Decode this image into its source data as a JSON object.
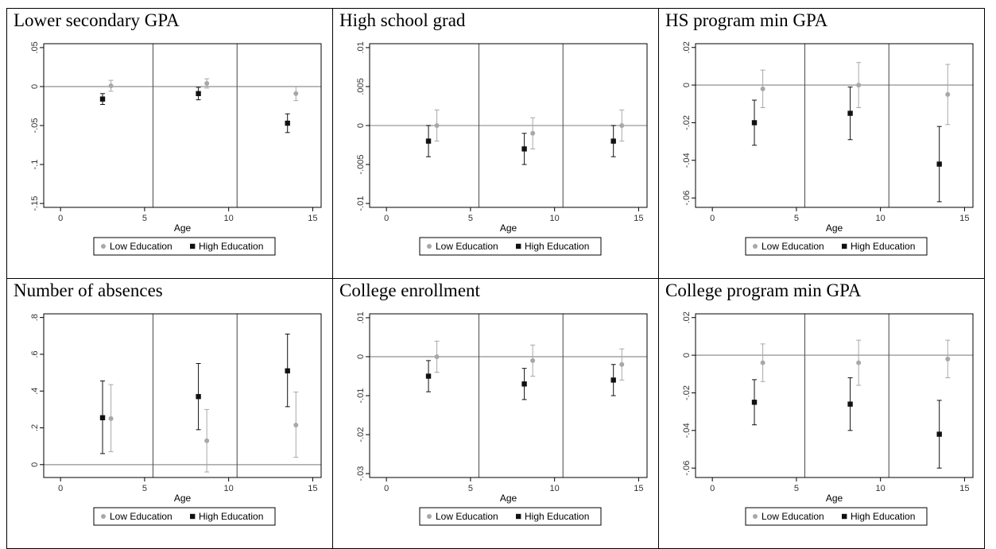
{
  "colors": {
    "low": "#a8a8a8",
    "high": "#111111",
    "hline": "#aaaaaa",
    "vline": "#555555",
    "frame": "#000000"
  },
  "chart_data": [
    {
      "type": "scatter",
      "title": "Lower secondary GPA",
      "xlabel": "Age",
      "xlim": [
        -1,
        15.5
      ],
      "xticks": [
        0,
        5,
        10,
        15
      ],
      "xtick_labels": [
        "0",
        "5",
        "10",
        "15"
      ],
      "ylim": [
        -0.155,
        0.055
      ],
      "yticks": [
        0.05,
        0,
        -0.05,
        -0.1,
        -0.15
      ],
      "ytick_labels": [
        ".05",
        "0",
        "-.05",
        "-.1",
        "-.15"
      ],
      "hline": 0,
      "vlines": [
        5.5,
        10.5
      ],
      "legend": {
        "placement": "bottom",
        "labels": [
          "Low Education",
          "High Education"
        ]
      },
      "series": [
        {
          "name": "Low Education",
          "x": [
            3,
            8.7,
            14
          ],
          "y": [
            0.001,
            0.004,
            -0.009
          ],
          "lo": [
            -0.006,
            -0.002,
            -0.018
          ],
          "hi": [
            0.008,
            0.01,
            0
          ]
        },
        {
          "name": "High Education",
          "x": [
            2.5,
            8.2,
            13.5
          ],
          "y": [
            -0.016,
            -0.009,
            -0.047
          ],
          "lo": [
            -0.023,
            -0.017,
            -0.059
          ],
          "hi": [
            -0.009,
            -0.001,
            -0.035
          ]
        }
      ]
    },
    {
      "type": "scatter",
      "title": "High school grad",
      "xlabel": "Age",
      "xlim": [
        -1,
        15.5
      ],
      "xticks": [
        0,
        5,
        10,
        15
      ],
      "xtick_labels": [
        "0",
        "5",
        "10",
        "15"
      ],
      "ylim": [
        -0.0105,
        0.0105
      ],
      "yticks": [
        0.01,
        0.005,
        0,
        -0.005,
        -0.01
      ],
      "ytick_labels": [
        ".01",
        ".005",
        "0",
        "-.005",
        "-.01"
      ],
      "hline": 0,
      "vlines": [
        5.5,
        10.5
      ],
      "legend": {
        "placement": "bottom",
        "labels": [
          "Low Education",
          "High Education"
        ]
      },
      "series": [
        {
          "name": "Low Education",
          "x": [
            3,
            8.7,
            14
          ],
          "y": [
            0,
            -0.001,
            0
          ],
          "lo": [
            -0.002,
            -0.003,
            -0.002
          ],
          "hi": [
            0.002,
            0.001,
            0.002
          ]
        },
        {
          "name": "High Education",
          "x": [
            2.5,
            8.2,
            13.5
          ],
          "y": [
            -0.002,
            -0.003,
            -0.002
          ],
          "lo": [
            -0.004,
            -0.005,
            -0.004
          ],
          "hi": [
            0,
            -0.001,
            0
          ]
        }
      ]
    },
    {
      "type": "scatter",
      "title": "HS program min GPA",
      "xlabel": "Age",
      "xlim": [
        -1,
        15.5
      ],
      "xticks": [
        0,
        5,
        10,
        15
      ],
      "xtick_labels": [
        "0",
        "5",
        "10",
        "15"
      ],
      "ylim": [
        -0.065,
        0.022
      ],
      "yticks": [
        0.02,
        0,
        -0.02,
        -0.04,
        -0.06
      ],
      "ytick_labels": [
        ".02",
        "0",
        "-.02",
        "-.04",
        "-.06"
      ],
      "hline": 0,
      "vlines": [
        5.5,
        10.5
      ],
      "legend": {
        "placement": "bottom",
        "labels": [
          "Low Education",
          "High Education"
        ]
      },
      "series": [
        {
          "name": "Low Education",
          "x": [
            3,
            8.7,
            14
          ],
          "y": [
            -0.002,
            0,
            -0.005
          ],
          "lo": [
            -0.012,
            -0.012,
            -0.021
          ],
          "hi": [
            0.008,
            0.012,
            0.011
          ]
        },
        {
          "name": "High Education",
          "x": [
            2.5,
            8.2,
            13.5
          ],
          "y": [
            -0.02,
            -0.015,
            -0.042
          ],
          "lo": [
            -0.032,
            -0.029,
            -0.062
          ],
          "hi": [
            -0.008,
            -0.001,
            -0.022
          ]
        }
      ]
    },
    {
      "type": "scatter",
      "title": "Number of absences",
      "xlabel": "Age",
      "xlim": [
        -1,
        15.5
      ],
      "xticks": [
        0,
        5,
        10,
        15
      ],
      "xtick_labels": [
        "0",
        "5",
        "10",
        "15"
      ],
      "ylim": [
        -0.07,
        0.82
      ],
      "yticks": [
        0.8,
        0.6,
        0.4,
        0.2,
        0
      ],
      "ytick_labels": [
        ".8",
        ".6",
        ".4",
        ".2",
        "0"
      ],
      "hline": 0,
      "vlines": [
        5.5,
        10.5
      ],
      "legend": {
        "placement": "bottom",
        "labels": [
          "Low Education",
          "High Education"
        ]
      },
      "series": [
        {
          "name": "Low Education",
          "x": [
            3,
            8.7,
            14
          ],
          "y": [
            0.25,
            0.13,
            0.215
          ],
          "lo": [
            0.07,
            -0.04,
            0.04
          ],
          "hi": [
            0.435,
            0.3,
            0.395
          ]
        },
        {
          "name": "High Education",
          "x": [
            2.5,
            8.2,
            13.5
          ],
          "y": [
            0.255,
            0.37,
            0.51
          ],
          "lo": [
            0.06,
            0.19,
            0.315
          ],
          "hi": [
            0.455,
            0.55,
            0.71
          ]
        }
      ]
    },
    {
      "type": "scatter",
      "title": "College enrollment",
      "xlabel": "Age",
      "xlim": [
        -1,
        15.5
      ],
      "xticks": [
        0,
        5,
        10,
        15
      ],
      "xtick_labels": [
        "0",
        "5",
        "10",
        "15"
      ],
      "ylim": [
        -0.031,
        0.011
      ],
      "yticks": [
        0.01,
        0,
        -0.01,
        -0.02,
        -0.03
      ],
      "ytick_labels": [
        ".01",
        "0",
        "-.01",
        "-.02",
        "-.03"
      ],
      "hline": 0,
      "vlines": [
        5.5,
        10.5
      ],
      "legend": {
        "placement": "bottom",
        "labels": [
          "Low Education",
          "High Education"
        ]
      },
      "series": [
        {
          "name": "Low Education",
          "x": [
            3,
            8.7,
            14
          ],
          "y": [
            0,
            -0.001,
            -0.002
          ],
          "lo": [
            -0.004,
            -0.005,
            -0.006
          ],
          "hi": [
            0.004,
            0.003,
            0.002
          ]
        },
        {
          "name": "High Education",
          "x": [
            2.5,
            8.2,
            13.5
          ],
          "y": [
            -0.005,
            -0.007,
            -0.006
          ],
          "lo": [
            -0.009,
            -0.011,
            -0.01
          ],
          "hi": [
            -0.001,
            -0.003,
            -0.002
          ]
        }
      ]
    },
    {
      "type": "scatter",
      "title": "College program min GPA",
      "xlabel": "Age",
      "xlim": [
        -1,
        15.5
      ],
      "xticks": [
        0,
        5,
        10,
        15
      ],
      "xtick_labels": [
        "0",
        "5",
        "10",
        "15"
      ],
      "ylim": [
        -0.065,
        0.022
      ],
      "yticks": [
        0.02,
        0,
        -0.02,
        -0.04,
        -0.06
      ],
      "ytick_labels": [
        ".02",
        "0",
        "-.02",
        "-.04",
        "-.06"
      ],
      "hline": 0,
      "vlines": [
        5.5,
        10.5
      ],
      "legend": {
        "placement": "bottom",
        "labels": [
          "Low Education",
          "High Education"
        ]
      },
      "series": [
        {
          "name": "Low Education",
          "x": [
            3,
            8.7,
            14
          ],
          "y": [
            -0.004,
            -0.004,
            -0.002
          ],
          "lo": [
            -0.014,
            -0.016,
            -0.012
          ],
          "hi": [
            0.006,
            0.008,
            0.008
          ]
        },
        {
          "name": "High Education",
          "x": [
            2.5,
            8.2,
            13.5
          ],
          "y": [
            -0.025,
            -0.026,
            -0.042
          ],
          "lo": [
            -0.037,
            -0.04,
            -0.06
          ],
          "hi": [
            -0.013,
            -0.012,
            -0.024
          ]
        }
      ]
    }
  ]
}
